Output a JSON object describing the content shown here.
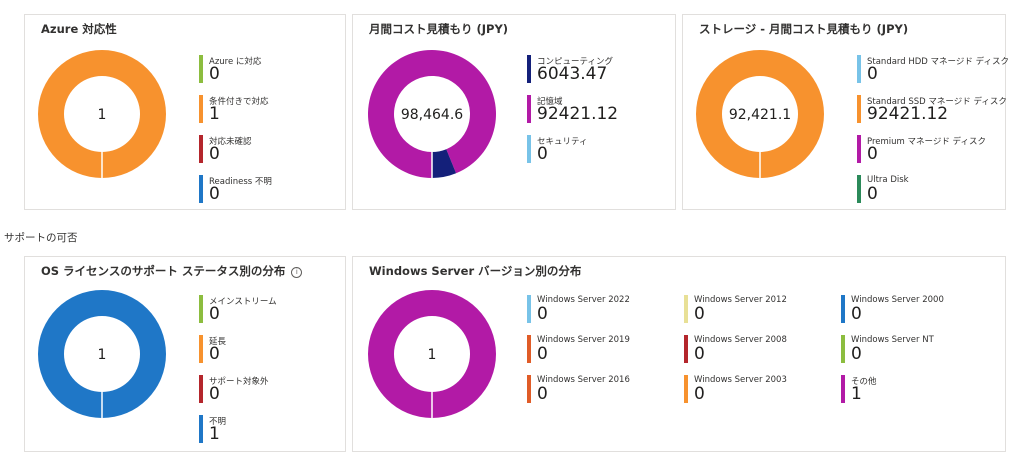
{
  "cards": [
    {
      "id": "azure",
      "title": "Azure 対応性",
      "center": "1",
      "legend": [
        {
          "label": "Azure に対応",
          "value": "0",
          "color": "#8cbd3f"
        },
        {
          "label": "条件付きで対応",
          "value": "1",
          "color": "#f7922e"
        },
        {
          "label": "対応未確認",
          "value": "0",
          "color": "#b4262c"
        },
        {
          "label": "Readiness 不明",
          "value": "0",
          "color": "#1f77c7"
        }
      ],
      "segments": [
        {
          "value": 1,
          "color": "#f7922e"
        }
      ]
    },
    {
      "id": "cost",
      "title": "月間コスト見積もり (JPY)",
      "center": "98,464.6",
      "legend": [
        {
          "label": "コンピューティング",
          "value": "6043.47",
          "color": "#14207a"
        },
        {
          "label": "記憶域",
          "value": "92421.12",
          "color": "#b21aa6"
        },
        {
          "label": "セキュリティ",
          "value": "0",
          "color": "#78c3e8"
        }
      ],
      "segments": [
        {
          "value": 92421.12,
          "color": "#b21aa6"
        },
        {
          "value": 6043.47,
          "color": "#14207a"
        }
      ]
    },
    {
      "id": "storage",
      "title": "ストレージ - 月間コスト見積もり (JPY)",
      "center": "92,421.1",
      "legend": [
        {
          "label": "Standard HDD マネージド ディスク",
          "value": "0",
          "color": "#78c3e8"
        },
        {
          "label": "Standard SSD マネージド ディスク",
          "value": "92421.12",
          "color": "#f7922e"
        },
        {
          "label": "Premium マネージド ディスク",
          "value": "0",
          "color": "#b21aa6"
        },
        {
          "label": "Ultra Disk",
          "value": "0",
          "color": "#2b8a5a"
        }
      ],
      "segments": [
        {
          "value": 92421.12,
          "color": "#f7922e"
        }
      ]
    },
    {
      "id": "os-license",
      "title": "OS ライセンスのサポート ステータス別の分布",
      "center": "1",
      "legend": [
        {
          "label": "メインストリーム",
          "value": "0",
          "color": "#8cbd3f"
        },
        {
          "label": "延長",
          "value": "0",
          "color": "#f7922e"
        },
        {
          "label": "サポート対象外",
          "value": "0",
          "color": "#b4262c"
        },
        {
          "label": "不明",
          "value": "1",
          "color": "#1f77c7"
        }
      ],
      "segments": [
        {
          "value": 1,
          "color": "#1f77c7"
        }
      ]
    },
    {
      "id": "windows-version",
      "title": "Windows Server バージョン別の分布",
      "center": "1",
      "legend": [
        {
          "label": "Windows Server 2022",
          "value": "0",
          "color": "#78c3e8"
        },
        {
          "label": "Windows Server 2019",
          "value": "0",
          "color": "#e05c28"
        },
        {
          "label": "Windows Server 2016",
          "value": "0",
          "color": "#e05c28"
        },
        {
          "label": "Windows Server 2012",
          "value": "0",
          "color": "#e8e096"
        },
        {
          "label": "Windows Server 2008",
          "value": "0",
          "color": "#b4262c"
        },
        {
          "label": "Windows Server 2003",
          "value": "0",
          "color": "#f7922e"
        },
        {
          "label": "Windows Server 2000",
          "value": "0",
          "color": "#1f77c7"
        },
        {
          "label": "Windows Server NT",
          "value": "0",
          "color": "#8cbd3f"
        },
        {
          "label": "その他",
          "value": "1",
          "color": "#b21aa6"
        }
      ],
      "segments": [
        {
          "value": 1,
          "color": "#b21aa6"
        }
      ]
    }
  ],
  "section_title": "サポートの可否",
  "info_icon": "info-icon"
}
